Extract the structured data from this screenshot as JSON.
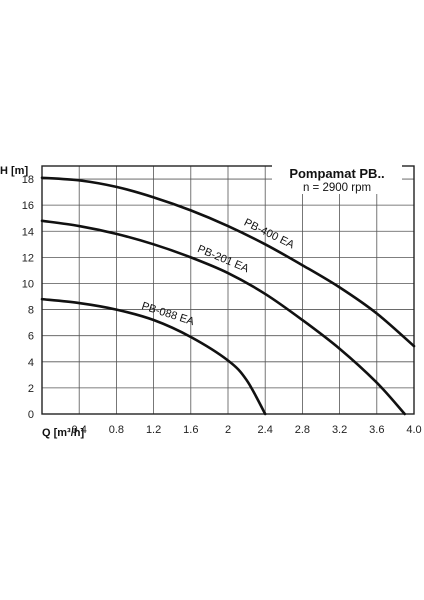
{
  "chart_data": {
    "type": "line",
    "title": "Pompamat PB..",
    "subtitle": "n = 2900 rpm",
    "xlabel": "Q [m³/h]",
    "ylabel": "H [m]",
    "xlim": [
      0,
      4.0
    ],
    "ylim": [
      0,
      19
    ],
    "grid": true,
    "x_ticks": [
      "0.4",
      "0.8",
      "1.2",
      "1.6",
      "2",
      "2.4",
      "2.8",
      "3.2",
      "3.6",
      "4.0"
    ],
    "x_tick_values": [
      0.4,
      0.8,
      1.2,
      1.6,
      2.0,
      2.4,
      2.8,
      3.2,
      3.6,
      4.0
    ],
    "y_ticks": [
      "0",
      "2",
      "4",
      "6",
      "8",
      "10",
      "12",
      "14",
      "16",
      "18"
    ],
    "y_tick_values": [
      0,
      2,
      4,
      6,
      8,
      10,
      12,
      14,
      16,
      18
    ],
    "series": [
      {
        "name": "PB-400 EA",
        "x": [
          0,
          0.4,
          0.8,
          1.2,
          1.6,
          2.0,
          2.4,
          2.8,
          3.2,
          3.6,
          4.0
        ],
        "y": [
          18.1,
          17.9,
          17.4,
          16.6,
          15.6,
          14.4,
          13.0,
          11.4,
          9.7,
          7.7,
          5.2
        ]
      },
      {
        "name": "PB-201 EA",
        "x": [
          0,
          0.4,
          0.8,
          1.2,
          1.6,
          2.0,
          2.4,
          2.8,
          3.2,
          3.6,
          3.9
        ],
        "y": [
          14.8,
          14.4,
          13.8,
          13.0,
          12.0,
          10.8,
          9.2,
          7.2,
          5.0,
          2.4,
          0
        ]
      },
      {
        "name": "PB-088 EA",
        "x": [
          0,
          0.4,
          0.8,
          1.2,
          1.6,
          2.0,
          2.2,
          2.4
        ],
        "y": [
          8.8,
          8.5,
          8.0,
          7.2,
          5.9,
          4.1,
          2.6,
          0
        ]
      }
    ],
    "annotations": [
      {
        "text": "PB-400 EA",
        "series": 0,
        "at_x": 2.1
      },
      {
        "text": "PB-201 EA",
        "series": 1,
        "at_x": 1.6
      },
      {
        "text": "PB-088 EA",
        "series": 2,
        "at_x": 1.0
      }
    ]
  }
}
